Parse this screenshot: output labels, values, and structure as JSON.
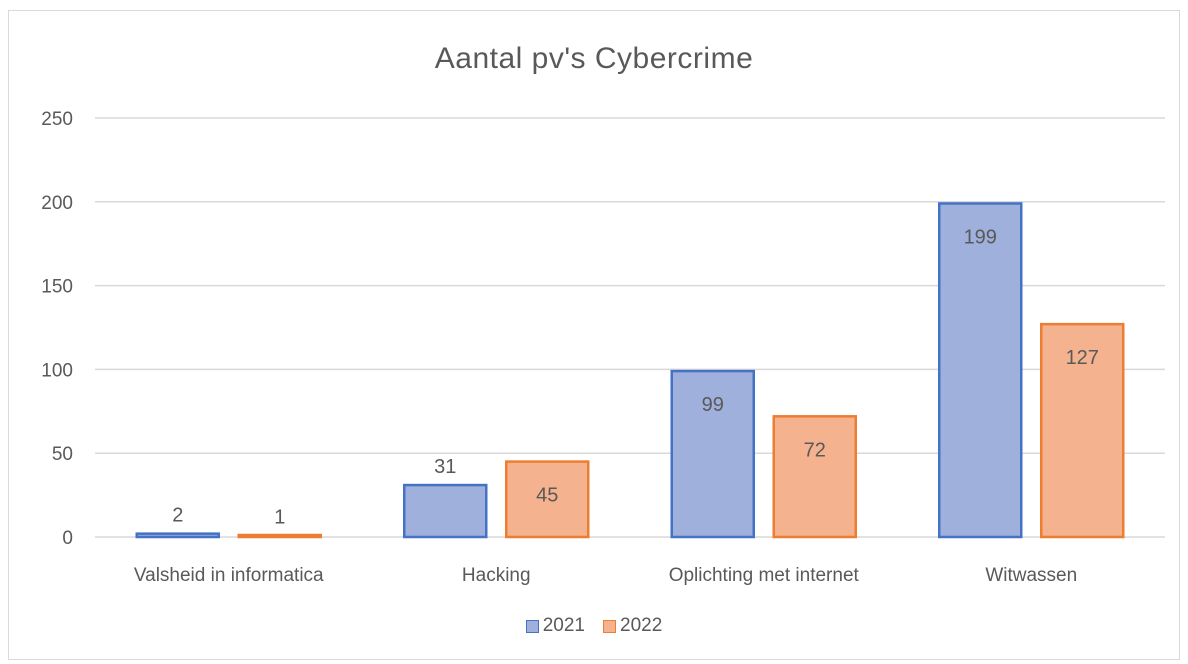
{
  "chart_data": {
    "type": "bar",
    "title": "Aantal pv's Cybercrime",
    "categories": [
      "Valsheid in informatica",
      "Hacking",
      "Oplichting met internet",
      "Witwassen"
    ],
    "series": [
      {
        "name": "2021",
        "values": [
          2,
          31,
          99,
          199
        ],
        "fill": "#9fb0dc",
        "stroke": "#4472c4"
      },
      {
        "name": "2022",
        "values": [
          1,
          45,
          72,
          127
        ],
        "fill": "#f4b28e",
        "stroke": "#ed7d31"
      }
    ],
    "ylim": [
      0,
      250
    ],
    "yticks": [
      0,
      50,
      100,
      150,
      200,
      250
    ],
    "grid": true,
    "legend_position": "bottom"
  }
}
